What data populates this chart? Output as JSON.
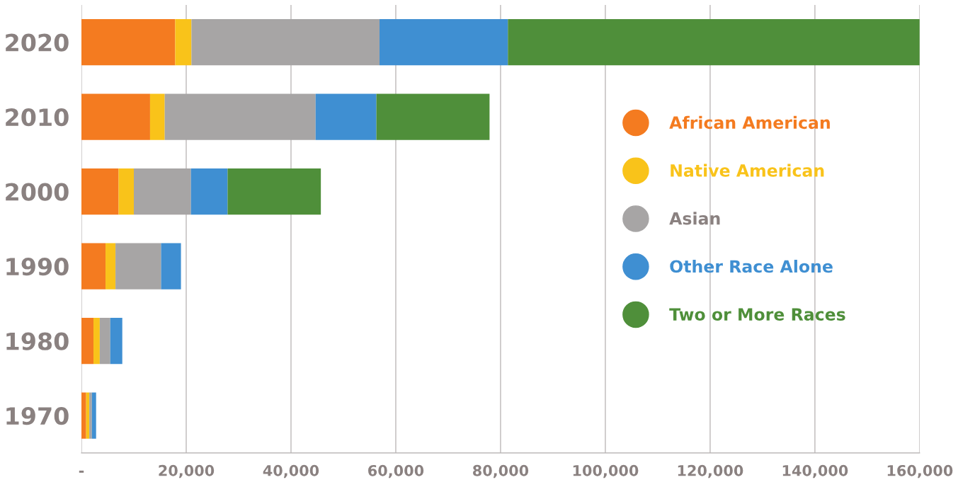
{
  "chart_data": {
    "type": "bar",
    "orientation": "horizontal",
    "stacked": true,
    "categories": [
      "2020",
      "2010",
      "2000",
      "1990",
      "1980",
      "1970"
    ],
    "series": [
      {
        "name": "African American",
        "color": "#f47b20",
        "values": [
          17900,
          13100,
          7100,
          4600,
          2300,
          900
        ]
      },
      {
        "name": "Native American",
        "color": "#f9c31a",
        "values": [
          3100,
          2800,
          2900,
          1900,
          1200,
          600
        ]
      },
      {
        "name": "Asian",
        "color": "#a7a5a5",
        "values": [
          35900,
          28800,
          10900,
          8700,
          2000,
          500
        ]
      },
      {
        "name": "Other Race Alone",
        "color": "#3f8fd2",
        "values": [
          24500,
          11600,
          7000,
          3800,
          2300,
          800
        ]
      },
      {
        "name": "Two or More Races",
        "color": "#4f8f3a",
        "values": [
          78600,
          21600,
          17800,
          0,
          0,
          0
        ]
      }
    ],
    "xlim": [
      0,
      160000
    ],
    "xticks": [
      {
        "value": 0,
        "label": "-"
      },
      {
        "value": 20000,
        "label": "20,000"
      },
      {
        "value": 40000,
        "label": "40,000"
      },
      {
        "value": 60000,
        "label": "60,000"
      },
      {
        "value": 80000,
        "label": "80,000"
      },
      {
        "value": 100000,
        "label": "100,000"
      },
      {
        "value": 120000,
        "label": "120,000"
      },
      {
        "value": 140000,
        "label": "140,000"
      },
      {
        "value": 160000,
        "label": "160,000"
      }
    ],
    "grid": "x",
    "legend": "right"
  }
}
